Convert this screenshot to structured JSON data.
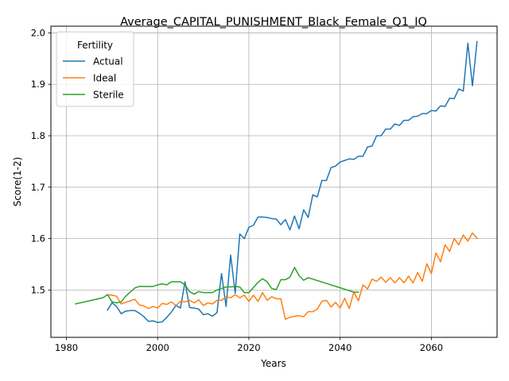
{
  "chart_data": {
    "type": "line",
    "title": "Average_CAPITAL_PUNISHMENT_Black_Female_Q1_IQ",
    "xlabel": "Years",
    "ylabel": "Score(1-2)",
    "xlim": [
      1976.6,
      2074.4
    ],
    "ylim": [
      1.408,
      2.013
    ],
    "x_ticks": [
      1980,
      2000,
      2020,
      2040,
      2060
    ],
    "y_ticks": [
      1.5,
      1.6,
      1.7,
      1.8,
      1.9,
      2.0
    ],
    "y_tick_labels": [
      "1.5",
      "1.6",
      "1.7",
      "1.8",
      "1.9",
      "2.0"
    ],
    "grid": true,
    "legend": {
      "title": "Fertility",
      "position": "top-left"
    },
    "series": [
      {
        "name": "Actual",
        "color": "#1f77b4",
        "points": [
          [
            1989,
            1.461
          ],
          [
            1990,
            1.475
          ],
          [
            1991,
            1.468
          ],
          [
            1992,
            1.454
          ],
          [
            1993,
            1.459
          ],
          [
            1994,
            1.46
          ],
          [
            1995,
            1.46
          ],
          [
            1996,
            1.455
          ],
          [
            1997,
            1.448
          ],
          [
            1998,
            1.439
          ],
          [
            1999,
            1.44
          ],
          [
            2000,
            1.437
          ],
          [
            2001,
            1.438
          ],
          [
            2002,
            1.447
          ],
          [
            2003,
            1.457
          ],
          [
            2004,
            1.47
          ],
          [
            2005,
            1.465
          ],
          [
            2006,
            1.516
          ],
          [
            2007,
            1.466
          ],
          [
            2008,
            1.465
          ],
          [
            2009,
            1.463
          ],
          [
            2010,
            1.452
          ],
          [
            2011,
            1.454
          ],
          [
            2012,
            1.449
          ],
          [
            2013,
            1.456
          ],
          [
            2014,
            1.532
          ],
          [
            2015,
            1.468
          ],
          [
            2016,
            1.568
          ],
          [
            2017,
            1.494
          ],
          [
            2018,
            1.609
          ],
          [
            2019,
            1.6
          ],
          [
            2020,
            1.622
          ],
          [
            2021,
            1.626
          ],
          [
            2022,
            1.642
          ],
          [
            2023,
            1.642
          ],
          [
            2024,
            1.641
          ],
          [
            2025,
            1.639
          ],
          [
            2026,
            1.638
          ],
          [
            2027,
            1.627
          ],
          [
            2028,
            1.637
          ],
          [
            2029,
            1.617
          ],
          [
            2030,
            1.644
          ],
          [
            2031,
            1.619
          ],
          [
            2032,
            1.656
          ],
          [
            2033,
            1.641
          ],
          [
            2034,
            1.685
          ],
          [
            2035,
            1.681
          ],
          [
            2036,
            1.713
          ],
          [
            2037,
            1.713
          ],
          [
            2038,
            1.738
          ],
          [
            2039,
            1.741
          ],
          [
            2040,
            1.749
          ],
          [
            2041,
            1.752
          ],
          [
            2042,
            1.755
          ],
          [
            2043,
            1.754
          ],
          [
            2044,
            1.76
          ],
          [
            2045,
            1.76
          ],
          [
            2046,
            1.778
          ],
          [
            2047,
            1.78
          ],
          [
            2048,
            1.8
          ],
          [
            2049,
            1.8
          ],
          [
            2050,
            1.813
          ],
          [
            2051,
            1.813
          ],
          [
            2052,
            1.823
          ],
          [
            2053,
            1.82
          ],
          [
            2054,
            1.83
          ],
          [
            2055,
            1.83
          ],
          [
            2056,
            1.837
          ],
          [
            2057,
            1.838
          ],
          [
            2058,
            1.843
          ],
          [
            2059,
            1.843
          ],
          [
            2060,
            1.849
          ],
          [
            2061,
            1.848
          ],
          [
            2062,
            1.858
          ],
          [
            2063,
            1.857
          ],
          [
            2064,
            1.873
          ],
          [
            2065,
            1.872
          ],
          [
            2066,
            1.891
          ],
          [
            2067,
            1.887
          ],
          [
            2068,
            1.98
          ],
          [
            2069,
            1.897
          ],
          [
            2070,
            1.983
          ]
        ]
      },
      {
        "name": "Ideal",
        "color": "#ff7f0e",
        "points": [
          [
            1989,
            1.491
          ],
          [
            1990,
            1.49
          ],
          [
            1991,
            1.488
          ],
          [
            1992,
            1.473
          ],
          [
            1993,
            1.476
          ],
          [
            1994,
            1.479
          ],
          [
            1995,
            1.482
          ],
          [
            1996,
            1.471
          ],
          [
            1997,
            1.469
          ],
          [
            1998,
            1.464
          ],
          [
            1999,
            1.468
          ],
          [
            2000,
            1.465
          ],
          [
            2001,
            1.474
          ],
          [
            2002,
            1.472
          ],
          [
            2003,
            1.477
          ],
          [
            2004,
            1.47
          ],
          [
            2005,
            1.478
          ],
          [
            2006,
            1.477
          ],
          [
            2007,
            1.48
          ],
          [
            2008,
            1.475
          ],
          [
            2009,
            1.481
          ],
          [
            2010,
            1.47
          ],
          [
            2011,
            1.475
          ],
          [
            2012,
            1.473
          ],
          [
            2013,
            1.48
          ],
          [
            2014,
            1.48
          ],
          [
            2015,
            1.487
          ],
          [
            2016,
            1.485
          ],
          [
            2017,
            1.491
          ],
          [
            2018,
            1.485
          ],
          [
            2019,
            1.49
          ],
          [
            2020,
            1.478
          ],
          [
            2021,
            1.49
          ],
          [
            2022,
            1.478
          ],
          [
            2023,
            1.495
          ],
          [
            2024,
            1.48
          ],
          [
            2025,
            1.487
          ],
          [
            2026,
            1.483
          ],
          [
            2027,
            1.483
          ],
          [
            2028,
            1.443
          ],
          [
            2029,
            1.447
          ],
          [
            2030,
            1.449
          ],
          [
            2031,
            1.45
          ],
          [
            2032,
            1.448
          ],
          [
            2033,
            1.458
          ],
          [
            2034,
            1.458
          ],
          [
            2035,
            1.463
          ],
          [
            2036,
            1.478
          ],
          [
            2037,
            1.48
          ],
          [
            2038,
            1.467
          ],
          [
            2039,
            1.476
          ],
          [
            2040,
            1.465
          ],
          [
            2041,
            1.484
          ],
          [
            2042,
            1.464
          ],
          [
            2043,
            1.496
          ],
          [
            2044,
            1.479
          ],
          [
            2045,
            1.51
          ],
          [
            2046,
            1.502
          ],
          [
            2047,
            1.521
          ],
          [
            2048,
            1.517
          ],
          [
            2049,
            1.525
          ],
          [
            2050,
            1.515
          ],
          [
            2051,
            1.524
          ],
          [
            2052,
            1.514
          ],
          [
            2053,
            1.524
          ],
          [
            2054,
            1.514
          ],
          [
            2055,
            1.527
          ],
          [
            2056,
            1.514
          ],
          [
            2057,
            1.534
          ],
          [
            2058,
            1.517
          ],
          [
            2059,
            1.551
          ],
          [
            2060,
            1.532
          ],
          [
            2061,
            1.572
          ],
          [
            2062,
            1.555
          ],
          [
            2063,
            1.588
          ],
          [
            2064,
            1.575
          ],
          [
            2065,
            1.6
          ],
          [
            2066,
            1.588
          ],
          [
            2067,
            1.607
          ],
          [
            2068,
            1.595
          ],
          [
            2069,
            1.611
          ],
          [
            2070,
            1.601
          ]
        ]
      },
      {
        "name": "Sterile",
        "color": "#2ca02c",
        "points": [
          [
            1982,
            1.473
          ],
          [
            1988,
            1.485
          ],
          [
            1989,
            1.491
          ],
          [
            1990,
            1.477
          ],
          [
            1991,
            1.475
          ],
          [
            1992,
            1.477
          ],
          [
            1993,
            1.488
          ],
          [
            1994,
            1.496
          ],
          [
            1995,
            1.504
          ],
          [
            1996,
            1.507
          ],
          [
            1997,
            1.507
          ],
          [
            1998,
            1.507
          ],
          [
            1999,
            1.507
          ],
          [
            2000,
            1.51
          ],
          [
            2001,
            1.512
          ],
          [
            2002,
            1.51
          ],
          [
            2003,
            1.516
          ],
          [
            2004,
            1.516
          ],
          [
            2005,
            1.516
          ],
          [
            2006,
            1.51
          ],
          [
            2007,
            1.497
          ],
          [
            2008,
            1.492
          ],
          [
            2009,
            1.497
          ],
          [
            2010,
            1.495
          ],
          [
            2011,
            1.495
          ],
          [
            2012,
            1.495
          ],
          [
            2013,
            1.5
          ],
          [
            2014,
            1.503
          ],
          [
            2015,
            1.506
          ],
          [
            2016,
            1.506
          ],
          [
            2017,
            1.507
          ],
          [
            2018,
            1.506
          ],
          [
            2019,
            1.495
          ],
          [
            2020,
            1.495
          ],
          [
            2021,
            1.505
          ],
          [
            2022,
            1.515
          ],
          [
            2023,
            1.522
          ],
          [
            2024,
            1.516
          ],
          [
            2025,
            1.503
          ],
          [
            2026,
            1.501
          ],
          [
            2027,
            1.52
          ],
          [
            2028,
            1.52
          ],
          [
            2029,
            1.525
          ],
          [
            2030,
            1.544
          ],
          [
            2031,
            1.528
          ],
          [
            2032,
            1.519
          ],
          [
            2033,
            1.524
          ],
          [
            2043,
            1.496
          ],
          [
            2044,
            1.496
          ]
        ]
      }
    ]
  }
}
